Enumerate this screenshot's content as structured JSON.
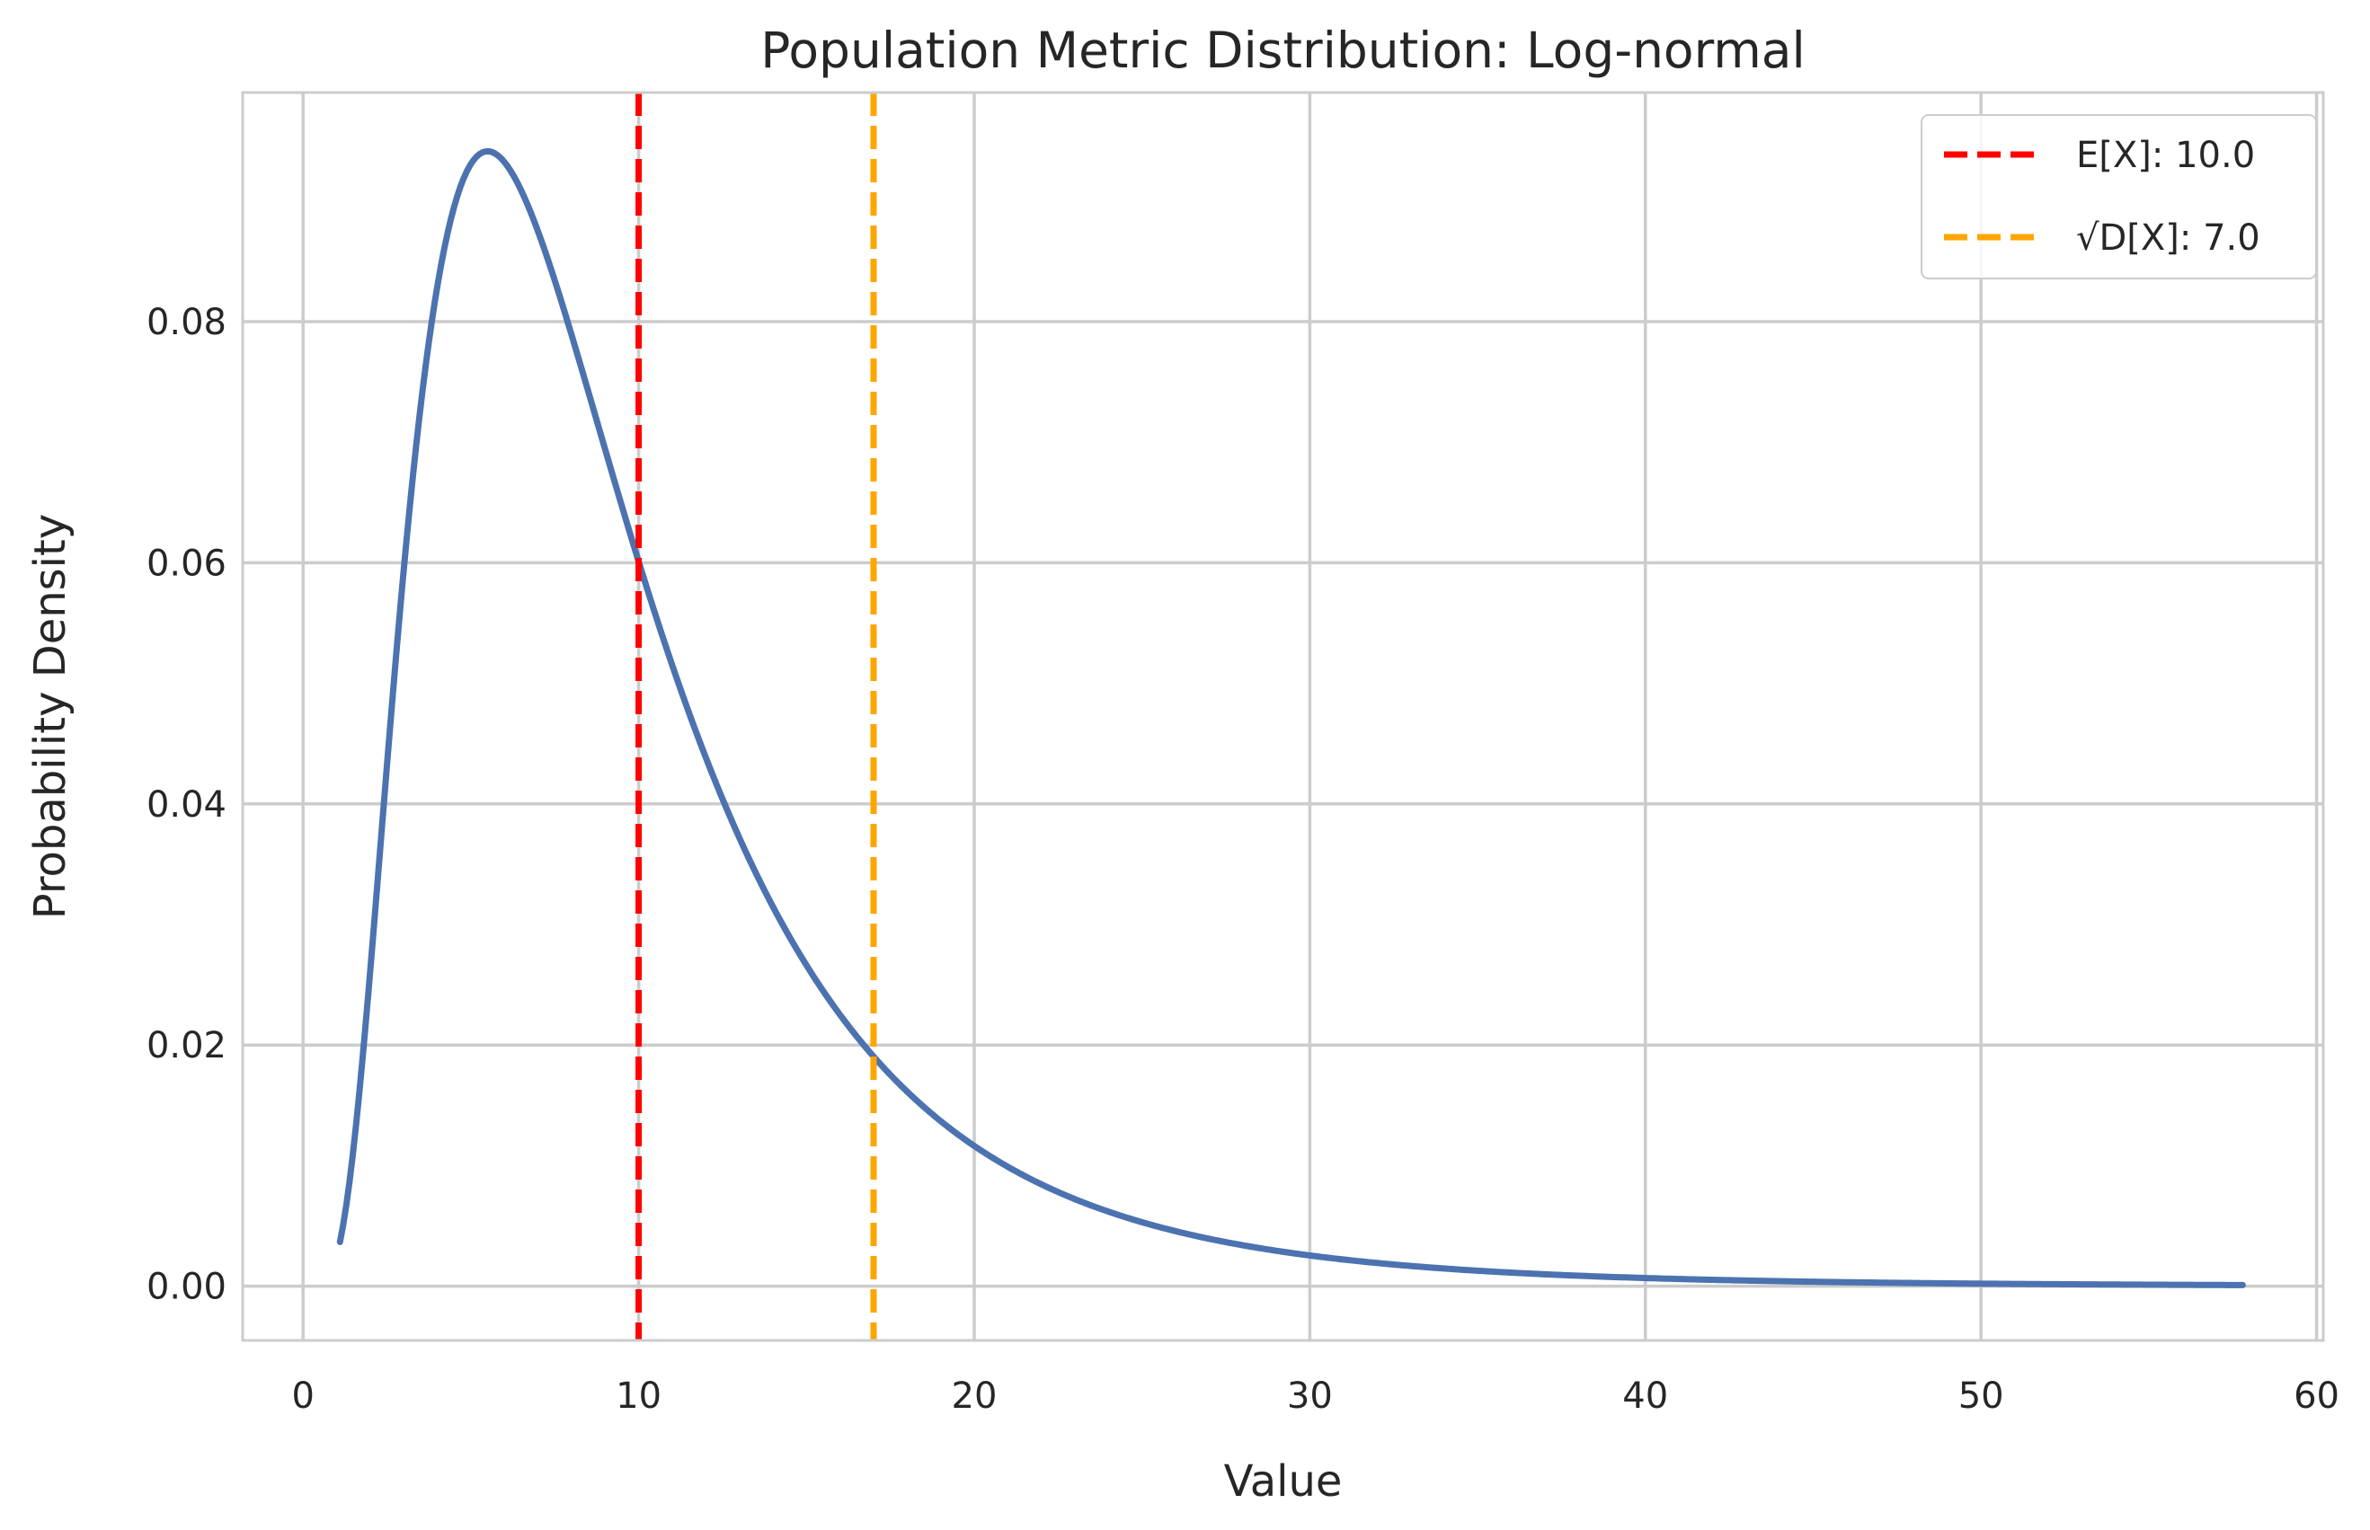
{
  "chart_data": {
    "type": "line",
    "title": "Population Metric Distribution: Log-normal",
    "xlabel": "Value",
    "ylabel": "Probability Density",
    "xlim": [
      -1.8,
      60.2
    ],
    "ylim": [
      -0.0045,
      0.099
    ],
    "x_ticks": [
      0,
      10,
      20,
      30,
      40,
      50,
      60
    ],
    "y_ticks": [
      0.0,
      0.02,
      0.04,
      0.06,
      0.08
    ],
    "x_tick_labels": [
      "0",
      "10",
      "20",
      "30",
      "40",
      "50",
      "60"
    ],
    "y_tick_labels": [
      "0.00",
      "0.02",
      "0.04",
      "0.06",
      "0.08"
    ],
    "grid": true,
    "series": [
      {
        "color": "#4C72B0",
        "distribution": "lognormal",
        "mean": 10.0,
        "std": 7.0,
        "x_range": [
          1.1,
          57.8
        ]
      }
    ],
    "vlines": [
      {
        "x": 10.0,
        "label": "E[X]: 10.0",
        "color": "#FF0000",
        "style": "dashed"
      },
      {
        "x": 17.0,
        "label": "√D[X]: 7.0",
        "color": "#FFA500",
        "style": "dashed"
      }
    ],
    "legend_position": "upper right"
  }
}
